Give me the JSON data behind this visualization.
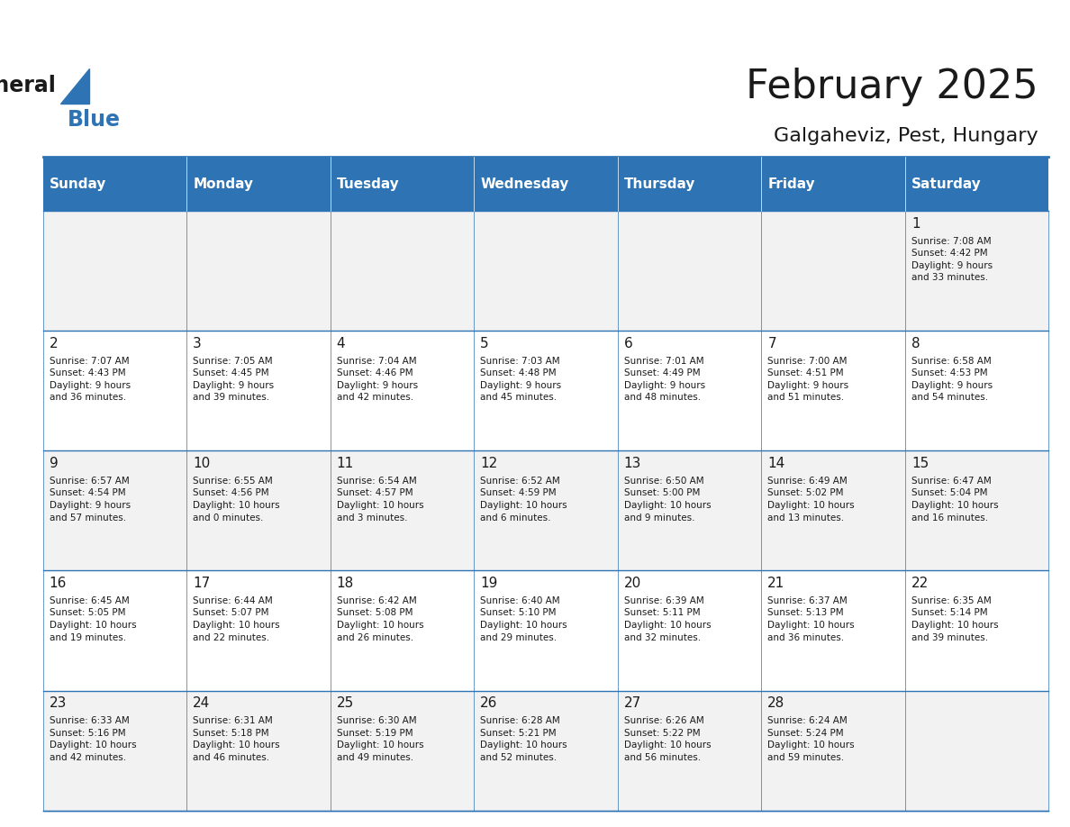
{
  "title": "February 2025",
  "subtitle": "Galgaheviz, Pest, Hungary",
  "header_bg": "#2E74B5",
  "header_text": "#FFFFFF",
  "cell_bg_odd": "#F2F2F2",
  "cell_bg_even": "#FFFFFF",
  "border_color": "#2E74B5",
  "day_headers": [
    "Sunday",
    "Monday",
    "Tuesday",
    "Wednesday",
    "Thursday",
    "Friday",
    "Saturday"
  ],
  "weeks": [
    [
      {
        "day": "",
        "info": ""
      },
      {
        "day": "",
        "info": ""
      },
      {
        "day": "",
        "info": ""
      },
      {
        "day": "",
        "info": ""
      },
      {
        "day": "",
        "info": ""
      },
      {
        "day": "",
        "info": ""
      },
      {
        "day": "1",
        "info": "Sunrise: 7:08 AM\nSunset: 4:42 PM\nDaylight: 9 hours\nand 33 minutes."
      }
    ],
    [
      {
        "day": "2",
        "info": "Sunrise: 7:07 AM\nSunset: 4:43 PM\nDaylight: 9 hours\nand 36 minutes."
      },
      {
        "day": "3",
        "info": "Sunrise: 7:05 AM\nSunset: 4:45 PM\nDaylight: 9 hours\nand 39 minutes."
      },
      {
        "day": "4",
        "info": "Sunrise: 7:04 AM\nSunset: 4:46 PM\nDaylight: 9 hours\nand 42 minutes."
      },
      {
        "day": "5",
        "info": "Sunrise: 7:03 AM\nSunset: 4:48 PM\nDaylight: 9 hours\nand 45 minutes."
      },
      {
        "day": "6",
        "info": "Sunrise: 7:01 AM\nSunset: 4:49 PM\nDaylight: 9 hours\nand 48 minutes."
      },
      {
        "day": "7",
        "info": "Sunrise: 7:00 AM\nSunset: 4:51 PM\nDaylight: 9 hours\nand 51 minutes."
      },
      {
        "day": "8",
        "info": "Sunrise: 6:58 AM\nSunset: 4:53 PM\nDaylight: 9 hours\nand 54 minutes."
      }
    ],
    [
      {
        "day": "9",
        "info": "Sunrise: 6:57 AM\nSunset: 4:54 PM\nDaylight: 9 hours\nand 57 minutes."
      },
      {
        "day": "10",
        "info": "Sunrise: 6:55 AM\nSunset: 4:56 PM\nDaylight: 10 hours\nand 0 minutes."
      },
      {
        "day": "11",
        "info": "Sunrise: 6:54 AM\nSunset: 4:57 PM\nDaylight: 10 hours\nand 3 minutes."
      },
      {
        "day": "12",
        "info": "Sunrise: 6:52 AM\nSunset: 4:59 PM\nDaylight: 10 hours\nand 6 minutes."
      },
      {
        "day": "13",
        "info": "Sunrise: 6:50 AM\nSunset: 5:00 PM\nDaylight: 10 hours\nand 9 minutes."
      },
      {
        "day": "14",
        "info": "Sunrise: 6:49 AM\nSunset: 5:02 PM\nDaylight: 10 hours\nand 13 minutes."
      },
      {
        "day": "15",
        "info": "Sunrise: 6:47 AM\nSunset: 5:04 PM\nDaylight: 10 hours\nand 16 minutes."
      }
    ],
    [
      {
        "day": "16",
        "info": "Sunrise: 6:45 AM\nSunset: 5:05 PM\nDaylight: 10 hours\nand 19 minutes."
      },
      {
        "day": "17",
        "info": "Sunrise: 6:44 AM\nSunset: 5:07 PM\nDaylight: 10 hours\nand 22 minutes."
      },
      {
        "day": "18",
        "info": "Sunrise: 6:42 AM\nSunset: 5:08 PM\nDaylight: 10 hours\nand 26 minutes."
      },
      {
        "day": "19",
        "info": "Sunrise: 6:40 AM\nSunset: 5:10 PM\nDaylight: 10 hours\nand 29 minutes."
      },
      {
        "day": "20",
        "info": "Sunrise: 6:39 AM\nSunset: 5:11 PM\nDaylight: 10 hours\nand 32 minutes."
      },
      {
        "day": "21",
        "info": "Sunrise: 6:37 AM\nSunset: 5:13 PM\nDaylight: 10 hours\nand 36 minutes."
      },
      {
        "day": "22",
        "info": "Sunrise: 6:35 AM\nSunset: 5:14 PM\nDaylight: 10 hours\nand 39 minutes."
      }
    ],
    [
      {
        "day": "23",
        "info": "Sunrise: 6:33 AM\nSunset: 5:16 PM\nDaylight: 10 hours\nand 42 minutes."
      },
      {
        "day": "24",
        "info": "Sunrise: 6:31 AM\nSunset: 5:18 PM\nDaylight: 10 hours\nand 46 minutes."
      },
      {
        "day": "25",
        "info": "Sunrise: 6:30 AM\nSunset: 5:19 PM\nDaylight: 10 hours\nand 49 minutes."
      },
      {
        "day": "26",
        "info": "Sunrise: 6:28 AM\nSunset: 5:21 PM\nDaylight: 10 hours\nand 52 minutes."
      },
      {
        "day": "27",
        "info": "Sunrise: 6:26 AM\nSunset: 5:22 PM\nDaylight: 10 hours\nand 56 minutes."
      },
      {
        "day": "28",
        "info": "Sunrise: 6:24 AM\nSunset: 5:24 PM\nDaylight: 10 hours\nand 59 minutes."
      },
      {
        "day": "",
        "info": ""
      }
    ]
  ]
}
